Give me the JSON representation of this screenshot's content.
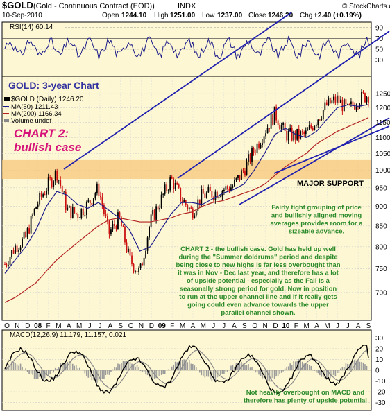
{
  "header": {
    "symbol": "$GOLD",
    "description": "(Gold - Continuous Contract (EOD))",
    "exchange": "INDX",
    "date": "10-Sep-2010",
    "open_label": "Open",
    "open": "1244.10",
    "high_label": "High",
    "high": "1251.00",
    "low_label": "Low",
    "low": "1237.00",
    "close_label": "Close",
    "close": "1246.20",
    "chg_label": "Chg",
    "chg": "+2.40 (+0.19%)",
    "brand": "© StockCharts.com"
  },
  "rsi_panel": {
    "label": "RSI(14) 60.14",
    "ticks": [
      90,
      70,
      50,
      30
    ]
  },
  "price_panel": {
    "chart_title": "GOLD: 3-year Chart",
    "legend": {
      "price": "$GOLD (Daily) 1246.20",
      "ma50": "MA(50) 1211.43",
      "ma200": "MA(200) 1166.34",
      "volume": "Volume undef"
    },
    "chart_label_1": "CHART 2:",
    "chart_label_2": "bullish case",
    "support_label": "MAJOR SUPPORT",
    "note_1": [
      "Fairly tight grouping of price",
      "and bullishly aligned moving",
      "averages provides room for a",
      "sizeable advance."
    ],
    "note_2": [
      "CHART 2 - the bullish case. Gold has held up well",
      "during the \"Summer doldrums\" period and despite",
      "being close to new highs is far less overbought than",
      "it was in Nov - Dec last year, and therefore has a lot",
      "of upside potential - especially as the Fall is a",
      "seasonally strong period for gold. Now in position",
      "to run at the upper channel line and if it really gets",
      "going could even advance towards the upper",
      "parallel channel shown."
    ],
    "ticks": [
      1250,
      1200,
      1150,
      1100,
      1050,
      1000,
      950,
      900,
      850,
      800,
      750,
      700
    ]
  },
  "months": [
    {
      "label": "O",
      "bold": false
    },
    {
      "label": "N",
      "bold": false
    },
    {
      "label": "D",
      "bold": false
    },
    {
      "label": "08",
      "bold": true
    },
    {
      "label": "F",
      "bold": false
    },
    {
      "label": "M",
      "bold": false
    },
    {
      "label": "A",
      "bold": false
    },
    {
      "label": "M",
      "bold": false
    },
    {
      "label": "J",
      "bold": false
    },
    {
      "label": "J",
      "bold": false
    },
    {
      "label": "A",
      "bold": false
    },
    {
      "label": "S",
      "bold": false
    },
    {
      "label": "O",
      "bold": false
    },
    {
      "label": "N",
      "bold": false
    },
    {
      "label": "D",
      "bold": false
    },
    {
      "label": "09",
      "bold": true
    },
    {
      "label": "F",
      "bold": false
    },
    {
      "label": "M",
      "bold": false
    },
    {
      "label": "A",
      "bold": false
    },
    {
      "label": "M",
      "bold": false
    },
    {
      "label": "J",
      "bold": false
    },
    {
      "label": "J",
      "bold": false
    },
    {
      "label": "A",
      "bold": false
    },
    {
      "label": "S",
      "bold": false
    },
    {
      "label": "O",
      "bold": false
    },
    {
      "label": "N",
      "bold": false
    },
    {
      "label": "D",
      "bold": false
    },
    {
      "label": "10",
      "bold": true
    },
    {
      "label": "F",
      "bold": false
    },
    {
      "label": "M",
      "bold": false
    },
    {
      "label": "A",
      "bold": false
    },
    {
      "label": "M",
      "bold": false
    },
    {
      "label": "J",
      "bold": false
    },
    {
      "label": "J",
      "bold": false
    },
    {
      "label": "A",
      "bold": false
    },
    {
      "label": "S",
      "bold": false
    }
  ],
  "macd_panel": {
    "label": "MACD(12,26,9) 11.179, 11.157, 0.021",
    "note": [
      "Not heavily overbought on MACD and",
      "therefore has plenty of upside potential"
    ],
    "ticks": [
      30,
      20,
      10,
      0,
      -10,
      -20,
      -30
    ]
  },
  "colors": {
    "panel_bg": "#fdf7d3",
    "price_up": "#000000",
    "price_down": "#cc1111",
    "ma50": "#1a1a8a",
    "ma200": "#b22222",
    "channel": "#2020b0",
    "support_band": "#f6c77b",
    "label_magenta": "#d6127a",
    "note_green": "#2a8a2a",
    "title_blue": "#3333a0"
  },
  "chart_data": {
    "type": "line",
    "series": [
      {
        "name": "$GOLD",
        "x": [
          "2007-10",
          "2007-11",
          "2007-12",
          "2008-01",
          "2008-02",
          "2008-03",
          "2008-04",
          "2008-05",
          "2008-06",
          "2008-07",
          "2008-08",
          "2008-09",
          "2008-10",
          "2008-11",
          "2008-12",
          "2009-01",
          "2009-02",
          "2009-03",
          "2009-04",
          "2009-05",
          "2009-06",
          "2009-07",
          "2009-08",
          "2009-09",
          "2009-10",
          "2009-11",
          "2009-12",
          "2010-01",
          "2010-02",
          "2010-03",
          "2010-04",
          "2010-05",
          "2010-06",
          "2010-07",
          "2010-08",
          "2010-09"
        ],
        "values": [
          760,
          800,
          820,
          900,
          950,
          995,
          890,
          880,
          905,
          950,
          830,
          870,
          770,
          740,
          860,
          915,
          975,
          920,
          885,
          930,
          935,
          945,
          955,
          1000,
          1060,
          1120,
          1180,
          1110,
          1105,
          1110,
          1160,
          1210,
          1230,
          1190,
          1230,
          1246
        ]
      },
      {
        "name": "MA(50)",
        "values": [
          740,
          770,
          800,
          840,
          900,
          940,
          930,
          905,
          895,
          910,
          890,
          870,
          840,
          790,
          800,
          840,
          880,
          910,
          910,
          905,
          920,
          935,
          945,
          960,
          1000,
          1050,
          1110,
          1130,
          1110,
          1100,
          1120,
          1160,
          1200,
          1210,
          1205,
          1211
        ]
      },
      {
        "name": "MA(200)",
        "values": [
          680,
          690,
          705,
          720,
          745,
          770,
          790,
          810,
          830,
          850,
          865,
          870,
          865,
          860,
          860,
          865,
          870,
          880,
          885,
          900,
          910,
          915,
          925,
          935,
          945,
          960,
          985,
          1010,
          1030,
          1050,
          1080,
          1100,
          1120,
          1135,
          1150,
          1166
        ]
      }
    ],
    "price_axis": {
      "scale": "log",
      "ticks": [
        700,
        750,
        800,
        850,
        900,
        950,
        1000,
        1050,
        1100,
        1150,
        1200,
        1250
      ]
    },
    "rsi": {
      "last": 60.14,
      "ylim": [
        10,
        90
      ]
    },
    "macd": {
      "macd": 11.179,
      "signal": 11.157,
      "histogram": 0.021,
      "ylim": [
        -30,
        30
      ]
    },
    "support_band": [
      975,
      1030
    ],
    "legend_position": "top-left",
    "grid": true
  }
}
